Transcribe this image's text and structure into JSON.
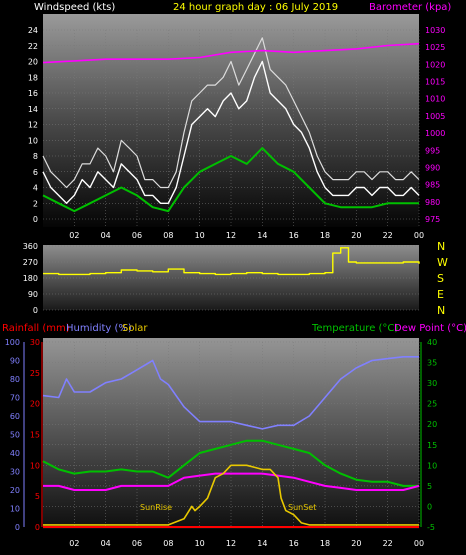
{
  "header": {
    "windspeed_label": "Windspeed (kts)",
    "title": "24 hour graph day : 06 July 2019",
    "barometer_label": "Barometer (kpa)"
  },
  "lower_header": {
    "rainfall_label": "Rainfall (mm)",
    "humidity_label": "Humidity (%)",
    "solar_label": "Solar",
    "temperature_label": "Temperature (°C)",
    "dewpoint_label": "Dew Point (°C)"
  },
  "colors": {
    "windspeed": "#ffffff",
    "wind_avg": "#00c000",
    "barometer": "#ff00ff",
    "direction": "#ffff00",
    "humidity": "#8080ff",
    "temperature": "#00c000",
    "dewpoint": "#ff00ff",
    "solar": "#e8c800",
    "rainfall": "#ff0000"
  },
  "chart_data": [
    {
      "type": "line",
      "name": "wind-and-barometer",
      "title": "24 hour graph day : 06 July 2019",
      "x_ticks": [
        "02",
        "04",
        "06",
        "08",
        "10",
        "12",
        "14",
        "16",
        "18",
        "20",
        "22",
        "00"
      ],
      "x_range": [
        0,
        24
      ],
      "y_left": {
        "label": "Windspeed (kts)",
        "range": [
          0,
          24
        ],
        "ticks": [
          0,
          2,
          4,
          6,
          8,
          10,
          12,
          14,
          16,
          18,
          20,
          22,
          24
        ]
      },
      "y_right": {
        "label": "Barometer (kpa)",
        "range": [
          975,
          1030
        ],
        "ticks": [
          975,
          980,
          985,
          990,
          995,
          1000,
          1005,
          1010,
          1015,
          1020,
          1025,
          1030
        ]
      },
      "series": [
        {
          "name": "Windspeed (kts)",
          "axis": "left",
          "x": [
            0,
            0.5,
            1,
            1.5,
            2,
            2.5,
            3,
            3.5,
            4,
            4.5,
            5,
            5.5,
            6,
            6.5,
            7,
            7.5,
            8,
            8.5,
            9,
            9.5,
            10,
            10.5,
            11,
            11.5,
            12,
            12.5,
            13,
            13.5,
            14,
            14.5,
            15,
            15.5,
            16,
            16.5,
            17,
            17.5,
            18,
            18.5,
            19,
            19.5,
            20,
            20.5,
            21,
            21.5,
            22,
            22.5,
            23,
            23.5,
            24
          ],
          "y": [
            6,
            4,
            3,
            2,
            3,
            5,
            4,
            6,
            5,
            4,
            7,
            6,
            5,
            3,
            3,
            2,
            2,
            4,
            8,
            12,
            13,
            14,
            13,
            15,
            16,
            14,
            15,
            18,
            20,
            16,
            15,
            14,
            12,
            11,
            9,
            6,
            4,
            3,
            3,
            3,
            4,
            4,
            3,
            4,
            4,
            3,
            3,
            4,
            3
          ]
        },
        {
          "name": "Gust (kts)",
          "axis": "left",
          "x": [
            0,
            0.5,
            1,
            1.5,
            2,
            2.5,
            3,
            3.5,
            4,
            4.5,
            5,
            5.5,
            6,
            6.5,
            7,
            7.5,
            8,
            8.5,
            9,
            9.5,
            10,
            10.5,
            11,
            11.5,
            12,
            12.5,
            13,
            13.5,
            14,
            14.5,
            15,
            15.5,
            16,
            16.5,
            17,
            17.5,
            18,
            18.5,
            19,
            19.5,
            20,
            20.5,
            21,
            21.5,
            22,
            22.5,
            23,
            23.5,
            24
          ],
          "y": [
            8,
            6,
            5,
            4,
            5,
            7,
            7,
            9,
            8,
            6,
            10,
            9,
            8,
            5,
            5,
            4,
            4,
            6,
            11,
            15,
            16,
            17,
            17,
            18,
            20,
            17,
            19,
            21,
            23,
            19,
            18,
            17,
            15,
            13,
            11,
            8,
            6,
            5,
            5,
            5,
            6,
            6,
            5,
            6,
            6,
            5,
            5,
            6,
            5
          ]
        },
        {
          "name": "Average (kts)",
          "axis": "left",
          "x": [
            0,
            1,
            2,
            3,
            4,
            5,
            6,
            7,
            8,
            9,
            10,
            11,
            12,
            13,
            14,
            15,
            16,
            17,
            18,
            19,
            20,
            21,
            22,
            23,
            24
          ],
          "y": [
            3,
            2,
            1,
            2,
            3,
            4,
            3,
            1.5,
            1,
            4,
            6,
            7,
            8,
            7,
            9,
            7,
            6,
            4,
            2,
            1.5,
            1.5,
            1.5,
            2,
            2,
            2
          ]
        },
        {
          "name": "Barometer (kpa)",
          "axis": "right",
          "x": [
            0,
            2,
            4,
            6,
            8,
            10,
            12,
            14,
            16,
            18,
            20,
            22,
            24
          ],
          "y": [
            1020.5,
            1021,
            1021.5,
            1021.5,
            1021.5,
            1022,
            1023.5,
            1024,
            1023.5,
            1024,
            1024.5,
            1025.5,
            1026
          ]
        }
      ]
    },
    {
      "type": "line",
      "name": "wind-direction",
      "x_range": [
        0,
        24
      ],
      "y_range": [
        0,
        360
      ],
      "y_ticks": [
        0,
        90,
        180,
        270,
        360
      ],
      "compass_labels": [
        "N",
        "W",
        "S",
        "E",
        "N"
      ],
      "series": [
        {
          "name": "Wind Direction",
          "x": [
            0,
            1,
            2,
            3,
            4,
            5,
            6,
            7,
            8,
            9,
            10,
            11,
            12,
            13,
            14,
            15,
            16,
            17,
            18,
            18.5,
            19,
            19.5,
            20,
            21,
            22,
            23,
            24
          ],
          "y": [
            205,
            200,
            200,
            205,
            210,
            225,
            220,
            215,
            230,
            210,
            205,
            200,
            205,
            210,
            205,
            200,
            200,
            205,
            210,
            320,
            350,
            270,
            265,
            265,
            265,
            270,
            260
          ]
        }
      ]
    },
    {
      "type": "line",
      "name": "temperature-humidity-solar",
      "x_range": [
        0,
        24
      ],
      "y_humidity": {
        "label": "Humidity (%)",
        "range": [
          0,
          100
        ],
        "ticks": [
          0,
          10,
          20,
          30,
          40,
          50,
          60,
          70,
          80,
          90,
          100
        ]
      },
      "y_rainfall": {
        "label": "Rainfall (mm)",
        "range": [
          0,
          30
        ],
        "ticks": [
          0,
          5,
          10,
          15,
          20,
          25,
          30
        ]
      },
      "y_temperature": {
        "label": "Temperature (°C)",
        "range": [
          -5,
          40
        ],
        "ticks": [
          -5,
          0,
          5,
          10,
          15,
          20,
          25,
          30,
          35,
          40
        ]
      },
      "annotations": [
        "SunRise",
        "SunSet"
      ],
      "series": [
        {
          "name": "Humidity (%)",
          "axis": "humidity",
          "x": [
            0,
            1,
            1.5,
            2,
            3,
            4,
            5,
            6,
            7,
            7.5,
            8,
            9,
            10,
            11,
            12,
            13,
            14,
            15,
            16,
            17,
            18,
            19,
            20,
            21,
            22,
            23,
            24
          ],
          "y": [
            71,
            70,
            80,
            73,
            73,
            78,
            80,
            85,
            90,
            80,
            77,
            65,
            57,
            57,
            57,
            55,
            53,
            55,
            55,
            60,
            70,
            80,
            86,
            90,
            91,
            92,
            92
          ]
        },
        {
          "name": "Temperature (°C)",
          "axis": "temperature",
          "x": [
            0,
            1,
            2,
            3,
            4,
            5,
            6,
            7,
            8,
            9,
            10,
            11,
            12,
            13,
            14,
            15,
            16,
            17,
            18,
            19,
            20,
            21,
            22,
            23,
            24
          ],
          "y": [
            11,
            9,
            8,
            8.5,
            8.5,
            9,
            8.5,
            8.5,
            7,
            10,
            13,
            14,
            15,
            16,
            16,
            15,
            14,
            13,
            10,
            8,
            6.5,
            6,
            6,
            5,
            5
          ]
        },
        {
          "name": "Dew Point (°C)",
          "axis": "temperature",
          "x": [
            0,
            1,
            2,
            3,
            4,
            5,
            6,
            7,
            8,
            9,
            10,
            11,
            12,
            13,
            14,
            15,
            16,
            17,
            18,
            19,
            20,
            21,
            22,
            23,
            24
          ],
          "y": [
            5,
            5,
            4,
            4,
            4,
            5,
            5,
            5,
            5,
            7,
            7.5,
            8,
            8,
            8,
            8,
            7.5,
            7,
            6,
            5,
            4.5,
            4,
            4,
            4,
            4,
            5
          ]
        },
        {
          "name": "Solar",
          "axis": "temperature",
          "x": [
            0,
            7,
            8,
            9,
            9.5,
            9.7,
            10,
            10.5,
            11,
            11.5,
            12,
            13,
            14,
            14.5,
            15,
            15.2,
            15.5,
            16,
            16.5,
            17,
            24
          ],
          "y": [
            -4.5,
            -4.5,
            -4.5,
            -3,
            0,
            -1,
            0,
            2,
            7,
            8,
            10,
            10,
            9,
            9,
            7,
            2,
            -1,
            -2,
            -4,
            -4.5,
            -4.5
          ]
        },
        {
          "name": "Rainfall (mm)",
          "axis": "rainfall",
          "x": [
            0,
            24
          ],
          "y": [
            0,
            0
          ]
        }
      ]
    }
  ]
}
